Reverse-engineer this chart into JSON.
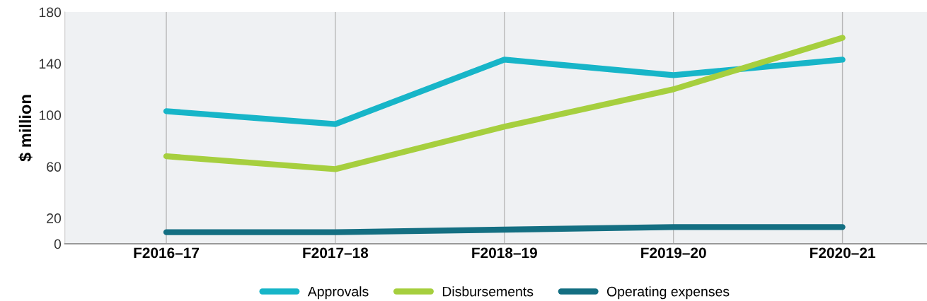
{
  "chart_data": {
    "type": "line",
    "ylabel": "$ million",
    "categories": [
      "F2016–17",
      "F2017–18",
      "F2018–19",
      "F2019–20",
      "F2020–21"
    ],
    "series": [
      {
        "name": "Approvals",
        "color": "#17b5c8",
        "values": [
          103,
          93,
          143,
          131,
          143
        ]
      },
      {
        "name": "Disbursements",
        "color": "#a6cf3e",
        "values": [
          68,
          58,
          91,
          120,
          160
        ]
      },
      {
        "name": "Operating expenses",
        "color": "#146f82",
        "values": [
          9,
          9,
          11,
          13,
          13
        ]
      }
    ],
    "ylim": [
      0,
      180
    ],
    "yticks": [
      0,
      20,
      60,
      100,
      140,
      180
    ],
    "grid": "x",
    "legend": "bottom",
    "marker": "none",
    "line_style": "solid"
  }
}
